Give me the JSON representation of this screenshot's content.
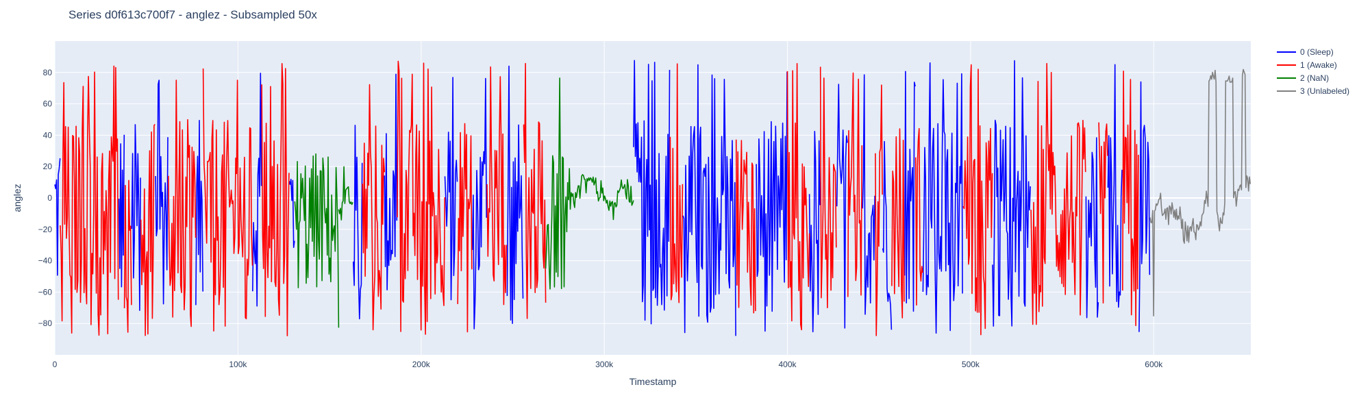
{
  "title": "Series d0f613c700f7 - anglez - Subsampled 50x",
  "chart_data": {
    "type": "line",
    "title": "Series d0f613c700f7 - anglez - Subsampled 50x",
    "xlabel": "Timestamp",
    "ylabel": "anglez",
    "xlim": [
      0,
      653000
    ],
    "ylim": [
      -100,
      100
    ],
    "x_ticks": [
      0,
      100000,
      200000,
      300000,
      400000,
      500000,
      600000
    ],
    "x_tick_labels": [
      "0",
      "100k",
      "200k",
      "300k",
      "400k",
      "500k",
      "600k"
    ],
    "y_ticks": [
      -80,
      -60,
      -40,
      -20,
      0,
      20,
      40,
      60,
      80
    ],
    "y_tick_labels": [
      "−80",
      "−60",
      "−40",
      "−20",
      "0",
      "20",
      "40",
      "60",
      "80"
    ],
    "grid": true,
    "legend_position": "top-right, outside plot",
    "series": [
      {
        "name": "0 (Sleep)",
        "color": "#0000ff",
        "style": "high-amplitude",
        "segments": [
          [
            0,
            3000
          ],
          [
            35000,
            38000
          ],
          [
            42000,
            47000
          ],
          [
            55000,
            62000
          ],
          [
            77000,
            81000
          ],
          [
            108000,
            113000
          ],
          [
            128000,
            131000
          ],
          [
            163000,
            168000
          ],
          [
            180000,
            187000
          ],
          [
            213000,
            220000
          ],
          [
            228000,
            236000
          ],
          [
            247000,
            256000
          ],
          [
            316000,
            336000
          ],
          [
            343000,
            372000
          ],
          [
            383000,
            400000
          ],
          [
            412000,
            418000
          ],
          [
            427000,
            433000
          ],
          [
            441000,
            448000
          ],
          [
            452000,
            457000
          ],
          [
            464000,
            470000
          ],
          [
            474000,
            496000
          ],
          [
            512000,
            533000
          ],
          [
            563000,
            570000
          ],
          [
            575000,
            583000
          ],
          [
            592000,
            598000
          ]
        ]
      },
      {
        "name": "1 (Awake)",
        "color": "#ff0000",
        "style": "high-amplitude",
        "segments": [
          [
            3000,
            35000
          ],
          [
            38000,
            42000
          ],
          [
            47000,
            55000
          ],
          [
            62000,
            77000
          ],
          [
            81000,
            108000
          ],
          [
            113000,
            128000
          ],
          [
            168000,
            180000
          ],
          [
            187000,
            213000
          ],
          [
            220000,
            228000
          ],
          [
            236000,
            247000
          ],
          [
            256000,
            268000
          ],
          [
            336000,
            343000
          ],
          [
            372000,
            383000
          ],
          [
            400000,
            412000
          ],
          [
            418000,
            427000
          ],
          [
            433000,
            441000
          ],
          [
            448000,
            452000
          ],
          [
            457000,
            464000
          ],
          [
            470000,
            474000
          ],
          [
            496000,
            512000
          ],
          [
            533000,
            563000
          ],
          [
            570000,
            575000
          ],
          [
            583000,
            592000
          ]
        ]
      },
      {
        "name": "2 (NaN)",
        "color": "#008000",
        "style": "mixed",
        "segments": [
          [
            131000,
            155000
          ],
          [
            155000,
            163000
          ],
          [
            268000,
            280000
          ],
          [
            280000,
            316000
          ]
        ]
      },
      {
        "name": "3 (Unlabeled)",
        "color": "#808080",
        "style": "mixed",
        "segments": [
          [
            598000,
            653000
          ]
        ]
      }
    ]
  }
}
